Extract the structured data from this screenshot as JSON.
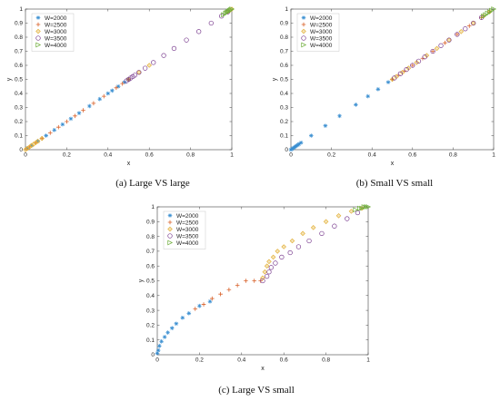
{
  "figure": {
    "panels": [
      {
        "caption": "(a) Large VS large",
        "chart_data": {
          "type": "scatter",
          "xlabel": "x",
          "ylabel": "y",
          "xlim": [
            0,
            1
          ],
          "ylim": [
            0,
            1
          ],
          "xticks": [
            "0",
            "0.2",
            "0.4",
            "0.6",
            "0.8",
            "1"
          ],
          "yticks": [
            "0",
            "0.1",
            "0.2",
            "0.3",
            "0.4",
            "0.5",
            "0.6",
            "0.7",
            "0.8",
            "0.9",
            "1"
          ],
          "legend_position": "top-left",
          "series": [
            {
              "name": "W=2000",
              "marker": "star",
              "color": "#3a8fd1",
              "points": [
                [
                  0.01,
                  0.01
                ],
                [
                  0.03,
                  0.03
                ],
                [
                  0.06,
                  0.06
                ],
                [
                  0.1,
                  0.1
                ],
                [
                  0.14,
                  0.14
                ],
                [
                  0.18,
                  0.18
                ],
                [
                  0.22,
                  0.22
                ],
                [
                  0.26,
                  0.26
                ],
                [
                  0.31,
                  0.31
                ],
                [
                  0.36,
                  0.36
                ],
                [
                  0.4,
                  0.4
                ],
                [
                  0.42,
                  0.42
                ],
                [
                  0.45,
                  0.45
                ],
                [
                  0.48,
                  0.48
                ],
                [
                  0.5,
                  0.5
                ]
              ]
            },
            {
              "name": "W=2500",
              "marker": "plus",
              "color": "#d9622b",
              "points": [
                [
                  0.005,
                  0.005
                ],
                [
                  0.02,
                  0.02
                ],
                [
                  0.05,
                  0.05
                ],
                [
                  0.08,
                  0.08
                ],
                [
                  0.12,
                  0.12
                ],
                [
                  0.16,
                  0.16
                ],
                [
                  0.2,
                  0.2
                ],
                [
                  0.24,
                  0.24
                ],
                [
                  0.28,
                  0.28
                ],
                [
                  0.33,
                  0.33
                ],
                [
                  0.38,
                  0.38
                ],
                [
                  0.44,
                  0.44
                ],
                [
                  0.47,
                  0.47
                ],
                [
                  0.5,
                  0.5
                ]
              ]
            },
            {
              "name": "W=3000",
              "marker": "diamond",
              "color": "#e3b23c",
              "points": [
                [
                  0.0,
                  0.0
                ],
                [
                  0.01,
                  0.01
                ],
                [
                  0.02,
                  0.02
                ],
                [
                  0.03,
                  0.03
                ],
                [
                  0.04,
                  0.04
                ],
                [
                  0.05,
                  0.05
                ],
                [
                  0.06,
                  0.06
                ],
                [
                  0.08,
                  0.08
                ],
                [
                  0.5,
                  0.5
                ],
                [
                  0.55,
                  0.55
                ],
                [
                  0.6,
                  0.6
                ],
                [
                  0.98,
                  0.98
                ],
                [
                  0.99,
                  0.99
                ],
                [
                  1.0,
                  1.0
                ]
              ]
            },
            {
              "name": "W=3500",
              "marker": "circle",
              "color": "#7a3d8f",
              "points": [
                [
                  0.49,
                  0.49
                ],
                [
                  0.5,
                  0.5
                ],
                [
                  0.51,
                  0.51
                ],
                [
                  0.52,
                  0.52
                ],
                [
                  0.53,
                  0.53
                ],
                [
                  0.55,
                  0.55
                ],
                [
                  0.58,
                  0.58
                ],
                [
                  0.62,
                  0.62
                ],
                [
                  0.67,
                  0.67
                ],
                [
                  0.72,
                  0.72
                ],
                [
                  0.78,
                  0.78
                ],
                [
                  0.84,
                  0.84
                ],
                [
                  0.9,
                  0.9
                ],
                [
                  0.95,
                  0.95
                ],
                [
                  0.98,
                  0.98
                ]
              ]
            },
            {
              "name": "W=4000",
              "marker": "triangle",
              "color": "#6fae3b",
              "points": [
                [
                  0.96,
                  0.96
                ],
                [
                  0.97,
                  0.97
                ],
                [
                  0.975,
                  0.975
                ],
                [
                  0.98,
                  0.98
                ],
                [
                  0.985,
                  0.985
                ],
                [
                  0.99,
                  0.99
                ],
                [
                  0.995,
                  0.995
                ],
                [
                  1.0,
                  1.0
                ]
              ]
            }
          ]
        }
      },
      {
        "caption": "(b) Small VS small",
        "chart_data": {
          "type": "scatter",
          "xlabel": "x",
          "ylabel": "y",
          "xlim": [
            0,
            1
          ],
          "ylim": [
            0,
            1
          ],
          "xticks": [
            "0",
            "0.2",
            "0.4",
            "0.6",
            "0.8",
            "1"
          ],
          "yticks": [
            "0",
            "0.1",
            "0.2",
            "0.3",
            "0.4",
            "0.5",
            "0.6",
            "0.7",
            "0.8",
            "0.9",
            "1"
          ],
          "legend_position": "top-left",
          "series": [
            {
              "name": "W=2000",
              "marker": "star",
              "color": "#3a8fd1",
              "points": [
                [
                  0.0,
                  0.0
                ],
                [
                  0.005,
                  0.005
                ],
                [
                  0.01,
                  0.01
                ],
                [
                  0.015,
                  0.015
                ],
                [
                  0.02,
                  0.02
                ],
                [
                  0.025,
                  0.025
                ],
                [
                  0.03,
                  0.03
                ],
                [
                  0.035,
                  0.035
                ],
                [
                  0.04,
                  0.04
                ],
                [
                  0.05,
                  0.05
                ],
                [
                  0.1,
                  0.1
                ],
                [
                  0.17,
                  0.17
                ],
                [
                  0.24,
                  0.24
                ],
                [
                  0.32,
                  0.32
                ],
                [
                  0.38,
                  0.38
                ],
                [
                  0.43,
                  0.43
                ],
                [
                  0.48,
                  0.48
                ]
              ]
            },
            {
              "name": "W=2500",
              "marker": "plus",
              "color": "#d9622b",
              "points": [
                [
                  0.5,
                  0.5
                ],
                [
                  0.53,
                  0.53
                ],
                [
                  0.56,
                  0.56
                ],
                [
                  0.6,
                  0.6
                ],
                [
                  0.65,
                  0.65
                ],
                [
                  0.7,
                  0.7
                ],
                [
                  0.76,
                  0.76
                ],
                [
                  0.82,
                  0.82
                ],
                [
                  0.88,
                  0.88
                ],
                [
                  0.94,
                  0.94
                ],
                [
                  0.98,
                  0.98
                ]
              ]
            },
            {
              "name": "W=3000",
              "marker": "diamond",
              "color": "#e3b23c",
              "points": [
                [
                  0.5,
                  0.5
                ],
                [
                  0.52,
                  0.52
                ],
                [
                  0.55,
                  0.55
                ],
                [
                  0.58,
                  0.58
                ],
                [
                  0.62,
                  0.62
                ],
                [
                  0.67,
                  0.67
                ],
                [
                  0.72,
                  0.72
                ],
                [
                  0.78,
                  0.78
                ],
                [
                  0.84,
                  0.84
                ],
                [
                  0.9,
                  0.9
                ],
                [
                  0.95,
                  0.95
                ],
                [
                  0.98,
                  0.98
                ]
              ]
            },
            {
              "name": "W=3500",
              "marker": "circle",
              "color": "#7a3d8f",
              "points": [
                [
                  0.51,
                  0.51
                ],
                [
                  0.54,
                  0.54
                ],
                [
                  0.57,
                  0.57
                ],
                [
                  0.6,
                  0.6
                ],
                [
                  0.63,
                  0.63
                ],
                [
                  0.66,
                  0.66
                ],
                [
                  0.7,
                  0.7
                ],
                [
                  0.74,
                  0.74
                ],
                [
                  0.78,
                  0.78
                ],
                [
                  0.82,
                  0.82
                ],
                [
                  0.86,
                  0.86
                ],
                [
                  0.9,
                  0.9
                ],
                [
                  0.94,
                  0.94
                ]
              ]
            },
            {
              "name": "W=4000",
              "marker": "triangle",
              "color": "#6fae3b",
              "points": [
                [
                  0.95,
                  0.95
                ],
                [
                  0.96,
                  0.96
                ],
                [
                  0.97,
                  0.97
                ],
                [
                  0.98,
                  0.98
                ],
                [
                  0.99,
                  0.99
                ],
                [
                  1.0,
                  1.0
                ]
              ]
            }
          ]
        }
      },
      {
        "caption": "(c) Large VS small",
        "chart_data": {
          "type": "scatter",
          "xlabel": "x",
          "ylabel": "y",
          "xlim": [
            0,
            1
          ],
          "ylim": [
            0,
            1
          ],
          "xticks": [
            "0",
            "0.2",
            "0.4",
            "0.6",
            "0.8",
            "1"
          ],
          "yticks": [
            "0",
            "0.1",
            "0.2",
            "0.3",
            "0.4",
            "0.5",
            "0.6",
            "0.7",
            "0.8",
            "0.9",
            "1"
          ],
          "legend_position": "top-left",
          "series": [
            {
              "name": "W=2000",
              "marker": "star",
              "color": "#3a8fd1",
              "points": [
                [
                  0.0,
                  0.01
                ],
                [
                  0.005,
                  0.03
                ],
                [
                  0.01,
                  0.06
                ],
                [
                  0.02,
                  0.09
                ],
                [
                  0.035,
                  0.12
                ],
                [
                  0.05,
                  0.15
                ],
                [
                  0.07,
                  0.18
                ],
                [
                  0.09,
                  0.21
                ],
                [
                  0.12,
                  0.25
                ],
                [
                  0.15,
                  0.28
                ],
                [
                  0.2,
                  0.33
                ],
                [
                  0.25,
                  0.36
                ]
              ]
            },
            {
              "name": "W=2500",
              "marker": "plus",
              "color": "#d9622b",
              "points": [
                [
                  0.18,
                  0.31
                ],
                [
                  0.22,
                  0.34
                ],
                [
                  0.26,
                  0.38
                ],
                [
                  0.3,
                  0.41
                ],
                [
                  0.34,
                  0.44
                ],
                [
                  0.38,
                  0.47
                ],
                [
                  0.42,
                  0.5
                ],
                [
                  0.46,
                  0.5
                ],
                [
                  0.49,
                  0.5
                ]
              ]
            },
            {
              "name": "W=3000",
              "marker": "diamond",
              "color": "#e3b23c",
              "points": [
                [
                  0.5,
                  0.52
                ],
                [
                  0.51,
                  0.56
                ],
                [
                  0.52,
                  0.6
                ],
                [
                  0.53,
                  0.63
                ],
                [
                  0.55,
                  0.66
                ],
                [
                  0.57,
                  0.7
                ],
                [
                  0.6,
                  0.73
                ],
                [
                  0.64,
                  0.77
                ],
                [
                  0.69,
                  0.82
                ],
                [
                  0.74,
                  0.86
                ],
                [
                  0.8,
                  0.9
                ],
                [
                  0.86,
                  0.94
                ],
                [
                  0.92,
                  0.97
                ],
                [
                  0.97,
                  0.99
                ]
              ]
            },
            {
              "name": "W=3500",
              "marker": "circle",
              "color": "#7a3d8f",
              "points": [
                [
                  0.5,
                  0.5
                ],
                [
                  0.52,
                  0.53
                ],
                [
                  0.53,
                  0.56
                ],
                [
                  0.54,
                  0.59
                ],
                [
                  0.56,
                  0.62
                ],
                [
                  0.59,
                  0.66
                ],
                [
                  0.63,
                  0.69
                ],
                [
                  0.67,
                  0.73
                ],
                [
                  0.72,
                  0.77
                ],
                [
                  0.78,
                  0.82
                ],
                [
                  0.84,
                  0.87
                ],
                [
                  0.9,
                  0.92
                ],
                [
                  0.95,
                  0.96
                ]
              ]
            },
            {
              "name": "W=4000",
              "marker": "triangle",
              "color": "#6fae3b",
              "points": [
                [
                  0.94,
                  0.98
                ],
                [
                  0.96,
                  0.99
                ],
                [
                  0.97,
                  0.99
                ],
                [
                  0.98,
                  1.0
                ],
                [
                  0.99,
                  1.0
                ],
                [
                  1.0,
                  1.0
                ]
              ]
            }
          ]
        }
      }
    ]
  }
}
